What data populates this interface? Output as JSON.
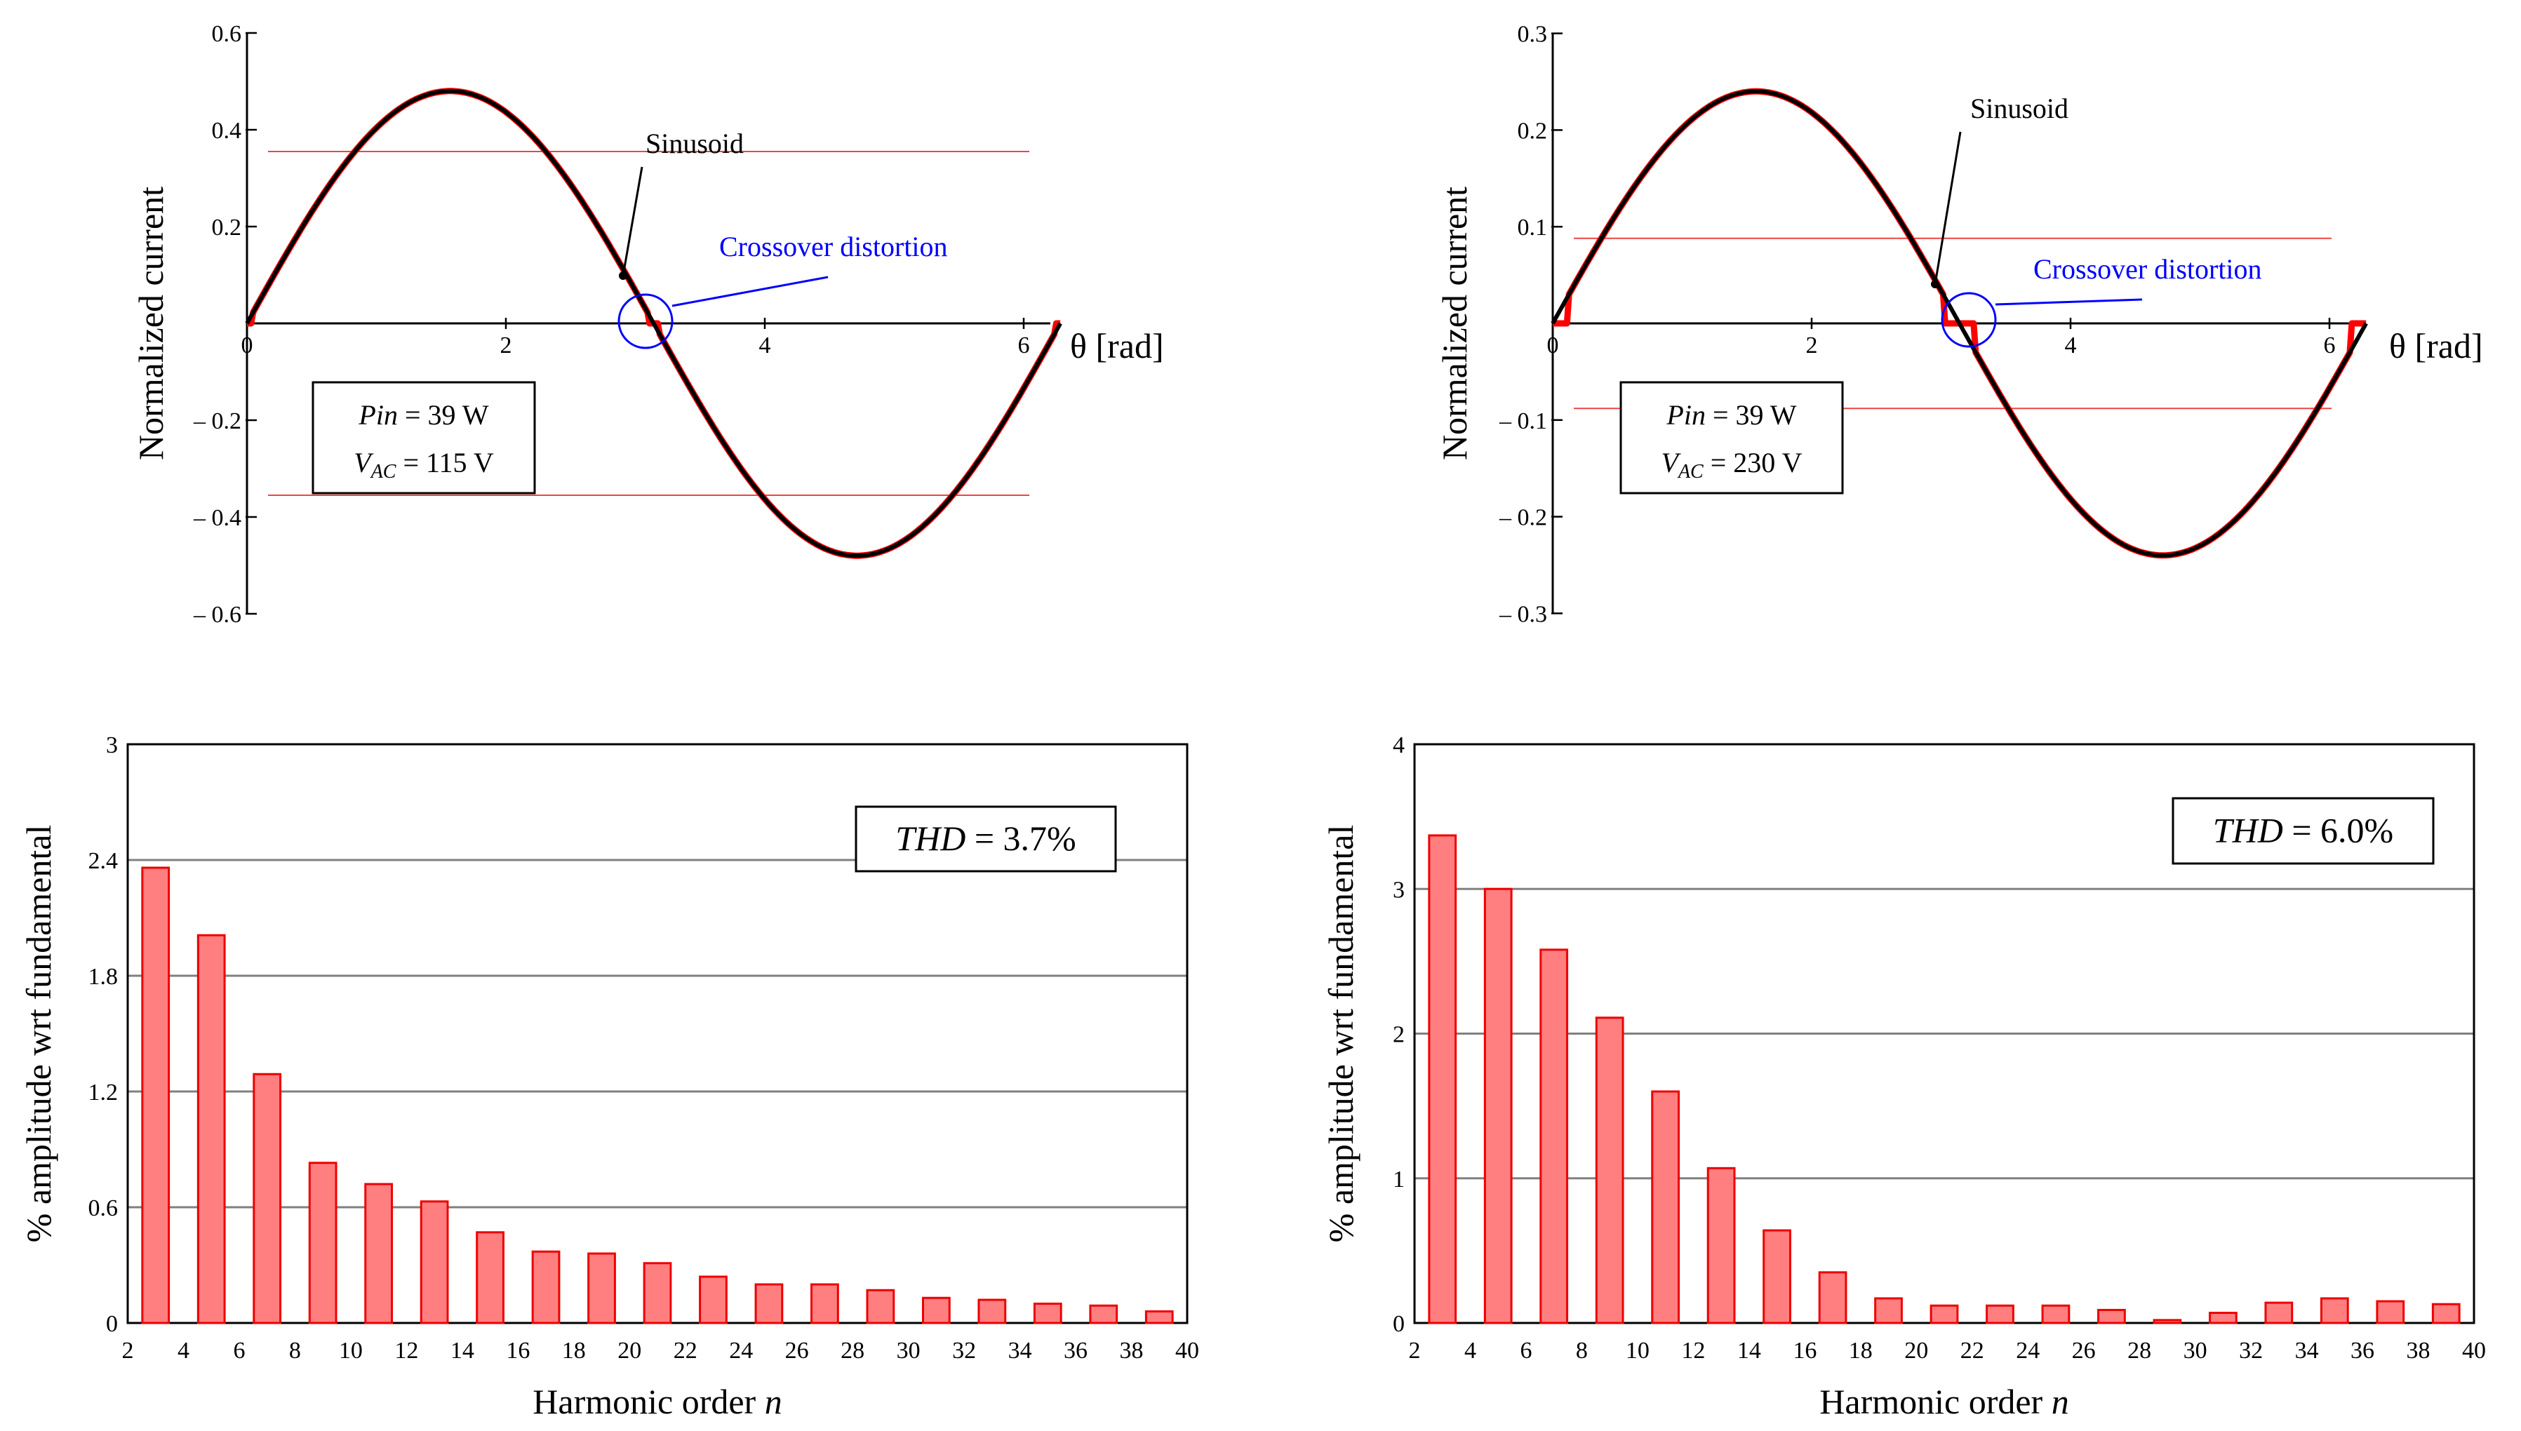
{
  "colors": {
    "sinusoid": "#000000",
    "measured": "#ff0000",
    "threshold": "#ee4444",
    "bar_fill": "#ff7f80",
    "bar_stroke": "#ee0000",
    "grid": "#808080",
    "annotation": "#0000ff"
  },
  "chart_data": [
    {
      "id": "waveform-115",
      "type": "line",
      "ylabel": "Normalized current",
      "xlabel": "θ [rad]",
      "xlim": [
        0,
        6.283
      ],
      "ylim": [
        -0.6,
        0.6
      ],
      "x_ticks": [
        "0",
        "2",
        "4",
        "6"
      ],
      "x_tick_values": [
        0,
        2,
        4,
        6
      ],
      "y_ticks": [
        "0.6",
        "0.4",
        "0.2",
        "– 0.2",
        "– 0.4",
        "– 0.6"
      ],
      "y_tick_values": [
        0.6,
        0.4,
        0.2,
        -0.2,
        -0.4,
        -0.6
      ],
      "amplitude": 0.48,
      "dead_zone": 0.07,
      "threshold_levels": [
        0.355,
        -0.355
      ],
      "annotations": {
        "sinusoid_label": "Sinusoid",
        "crossover_label": "Crossover distortion"
      },
      "legend_box": {
        "pin_label": "Pin",
        "pin_value": "= 39 W",
        "vac_label": "V",
        "vac_sub": "AC",
        "vac_value": "= 115 V"
      },
      "series": [
        {
          "name": "Sinusoid",
          "color": "#000000"
        },
        {
          "name": "Measured current",
          "color": "#ff0000"
        }
      ]
    },
    {
      "id": "waveform-230",
      "type": "line",
      "ylabel": "Normalized current",
      "xlabel": "θ [rad]",
      "xlim": [
        0,
        6.283
      ],
      "ylim": [
        -0.3,
        0.3
      ],
      "x_ticks": [
        "0",
        "2",
        "4",
        "6"
      ],
      "x_tick_values": [
        0,
        2,
        4,
        6
      ],
      "y_ticks": [
        "0.3",
        "0.2",
        "0.1",
        "– 0.1",
        "– 0.2",
        "– 0.3"
      ],
      "y_tick_values": [
        0.3,
        0.2,
        0.1,
        -0.1,
        -0.2,
        -0.3
      ],
      "amplitude": 0.24,
      "dead_zone": 0.09,
      "threshold_levels": [
        0.088,
        -0.088
      ],
      "annotations": {
        "sinusoid_label": "Sinusoid",
        "crossover_label": "Crossover distortion"
      },
      "legend_box": {
        "pin_label": "Pin",
        "pin_value": "= 39 W",
        "vac_label": "V",
        "vac_sub": "AC",
        "vac_value": "= 230 V"
      },
      "series": [
        {
          "name": "Sinusoid",
          "color": "#000000"
        },
        {
          "name": "Measured current",
          "color": "#ff0000"
        }
      ]
    },
    {
      "id": "harmonics-115",
      "type": "bar",
      "ylabel": "% amplitude wrt fundamental",
      "xlabel_prefix": "Harmonic order ",
      "xlabel_var": "n",
      "xlim": [
        2,
        40
      ],
      "ylim": [
        0,
        3
      ],
      "x_ticks": [
        "2",
        "4",
        "6",
        "8",
        "10",
        "12",
        "14",
        "16",
        "18",
        "20",
        "22",
        "24",
        "26",
        "28",
        "30",
        "32",
        "34",
        "36",
        "38",
        "40"
      ],
      "x_tick_values": [
        2,
        4,
        6,
        8,
        10,
        12,
        14,
        16,
        18,
        20,
        22,
        24,
        26,
        28,
        30,
        32,
        34,
        36,
        38,
        40
      ],
      "y_ticks": [
        "0",
        "0.6",
        "1.2",
        "1.8",
        "2.4",
        "3"
      ],
      "y_tick_values": [
        0,
        0.6,
        1.2,
        1.8,
        2.4,
        3
      ],
      "gridlines": [
        0.6,
        1.2,
        1.8,
        2.4
      ],
      "thd": {
        "label": "THD",
        "value": "= 3.7%"
      },
      "categories": [
        3,
        5,
        7,
        9,
        11,
        13,
        15,
        17,
        19,
        21,
        23,
        25,
        27,
        29,
        31,
        33,
        35,
        37,
        39
      ],
      "values": [
        2.36,
        2.01,
        1.29,
        0.83,
        0.72,
        0.63,
        0.47,
        0.37,
        0.36,
        0.31,
        0.24,
        0.2,
        0.2,
        0.17,
        0.13,
        0.12,
        0.1,
        0.09,
        0.06
      ]
    },
    {
      "id": "harmonics-230",
      "type": "bar",
      "ylabel": "% amplitude wrt fundamental",
      "xlabel_prefix": "Harmonic order ",
      "xlabel_var": "n",
      "xlim": [
        2,
        40
      ],
      "ylim": [
        0,
        4
      ],
      "x_ticks": [
        "2",
        "4",
        "6",
        "8",
        "10",
        "12",
        "14",
        "16",
        "18",
        "20",
        "22",
        "24",
        "26",
        "28",
        "30",
        "32",
        "34",
        "36",
        "38",
        "40"
      ],
      "x_tick_values": [
        2,
        4,
        6,
        8,
        10,
        12,
        14,
        16,
        18,
        20,
        22,
        24,
        26,
        28,
        30,
        32,
        34,
        36,
        38,
        40
      ],
      "y_ticks": [
        "0",
        "1",
        "2",
        "3",
        "4"
      ],
      "y_tick_values": [
        0,
        1,
        2,
        3,
        4
      ],
      "gridlines": [
        1,
        2,
        3
      ],
      "thd": {
        "label": "THD",
        "value": "= 6.0%"
      },
      "categories": [
        3,
        5,
        7,
        9,
        11,
        13,
        15,
        17,
        19,
        21,
        23,
        25,
        27,
        29,
        31,
        33,
        35,
        37,
        39
      ],
      "values": [
        3.37,
        3.0,
        2.58,
        2.11,
        1.6,
        1.07,
        0.64,
        0.35,
        0.17,
        0.12,
        0.12,
        0.12,
        0.09,
        0.02,
        0.07,
        0.14,
        0.17,
        0.15,
        0.13
      ]
    }
  ]
}
